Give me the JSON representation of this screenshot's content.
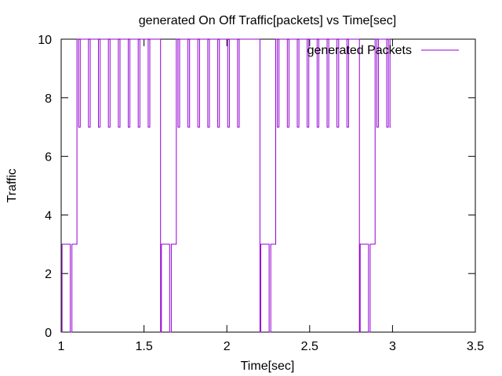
{
  "chart_data": {
    "type": "line",
    "title": "generated On Off Traffic[packets] vs Time[sec]",
    "xlabel": "Time[sec]",
    "ylabel": "Traffic",
    "xlim": [
      1,
      3.5
    ],
    "ylim": [
      0,
      10
    ],
    "xticks": [
      1,
      1.5,
      2,
      2.5,
      3,
      3.5
    ],
    "yticks": [
      0,
      2,
      4,
      6,
      8,
      10
    ],
    "grid": false,
    "legend_position": "top-right",
    "series": [
      {
        "name": "generated Packets",
        "color": "#9400d3",
        "step": true,
        "points": [
          [
            1.0,
            0
          ],
          [
            1.005,
            3
          ],
          [
            1.055,
            0
          ],
          [
            1.065,
            3
          ],
          [
            1.095,
            10
          ],
          [
            1.105,
            7
          ],
          [
            1.115,
            10
          ],
          [
            1.165,
            7
          ],
          [
            1.175,
            10
          ],
          [
            1.225,
            7
          ],
          [
            1.235,
            10
          ],
          [
            1.285,
            7
          ],
          [
            1.295,
            10
          ],
          [
            1.345,
            7
          ],
          [
            1.355,
            10
          ],
          [
            1.405,
            7
          ],
          [
            1.415,
            10
          ],
          [
            1.465,
            7
          ],
          [
            1.475,
            10
          ],
          [
            1.525,
            7
          ],
          [
            1.535,
            10
          ],
          [
            1.6,
            0
          ],
          [
            1.605,
            3
          ],
          [
            1.655,
            0
          ],
          [
            1.665,
            3
          ],
          [
            1.695,
            10
          ],
          [
            1.705,
            7
          ],
          [
            1.715,
            10
          ],
          [
            1.765,
            7
          ],
          [
            1.775,
            10
          ],
          [
            1.825,
            7
          ],
          [
            1.835,
            10
          ],
          [
            1.885,
            7
          ],
          [
            1.895,
            10
          ],
          [
            1.945,
            7
          ],
          [
            1.955,
            10
          ],
          [
            2.005,
            7
          ],
          [
            2.015,
            10
          ],
          [
            2.065,
            7
          ],
          [
            2.075,
            10
          ],
          [
            2.135,
            10
          ],
          [
            2.2,
            0
          ],
          [
            2.205,
            3
          ],
          [
            2.255,
            0
          ],
          [
            2.265,
            3
          ],
          [
            2.295,
            10
          ],
          [
            2.305,
            7
          ],
          [
            2.315,
            10
          ],
          [
            2.365,
            7
          ],
          [
            2.375,
            10
          ],
          [
            2.425,
            7
          ],
          [
            2.435,
            10
          ],
          [
            2.485,
            7
          ],
          [
            2.495,
            10
          ],
          [
            2.545,
            7
          ],
          [
            2.555,
            10
          ],
          [
            2.605,
            7
          ],
          [
            2.615,
            10
          ],
          [
            2.665,
            7
          ],
          [
            2.675,
            10
          ],
          [
            2.725,
            7
          ],
          [
            2.735,
            10
          ],
          [
            2.8,
            0
          ],
          [
            2.805,
            3
          ],
          [
            2.855,
            0
          ],
          [
            2.865,
            3
          ],
          [
            2.895,
            10
          ],
          [
            2.905,
            7
          ],
          [
            2.915,
            10
          ],
          [
            2.965,
            7
          ],
          [
            2.975,
            10
          ],
          [
            2.985,
            7
          ],
          [
            2.99,
            7
          ]
        ]
      }
    ]
  }
}
